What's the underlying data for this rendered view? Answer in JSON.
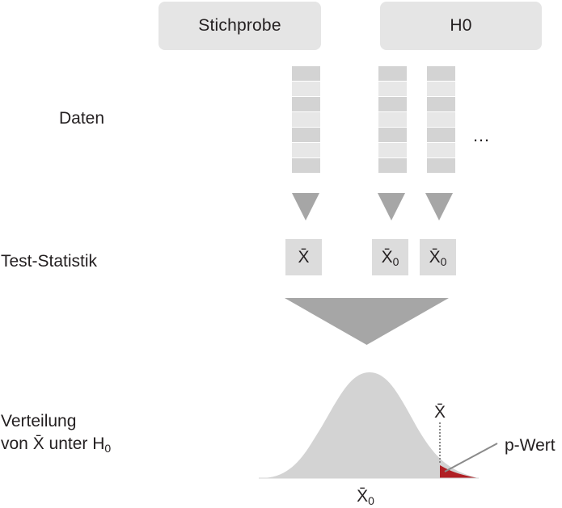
{
  "header": {
    "sample_label": "Stichprobe",
    "h0_label": "H0"
  },
  "labels": {
    "daten": "Daten",
    "test_statistik": "Test-Statistik",
    "verteilung_line1": "Verteilung",
    "verteilung_line2_prefix": "von X̄ unter H",
    "verteilung_line2_subscript": "0"
  },
  "data": {
    "ellipsis": "…"
  },
  "test_statistics": {
    "sample": "X̄",
    "h0_base": "X̄",
    "h0_subscript": "0"
  },
  "distribution": {
    "observed_marker": "X̄",
    "center_label_base": "X̄",
    "center_label_subscript": "0",
    "p_value_label": "p-Wert"
  },
  "colors": {
    "header_fill": "#e5e5e5",
    "data_dark": "#d3d3d3",
    "data_light": "#e7e7e7",
    "arrow": "#a6a6a6",
    "statistic_box": "#dcdcdc",
    "curve": "#d3d3d3",
    "p_value": "#b01f24"
  }
}
